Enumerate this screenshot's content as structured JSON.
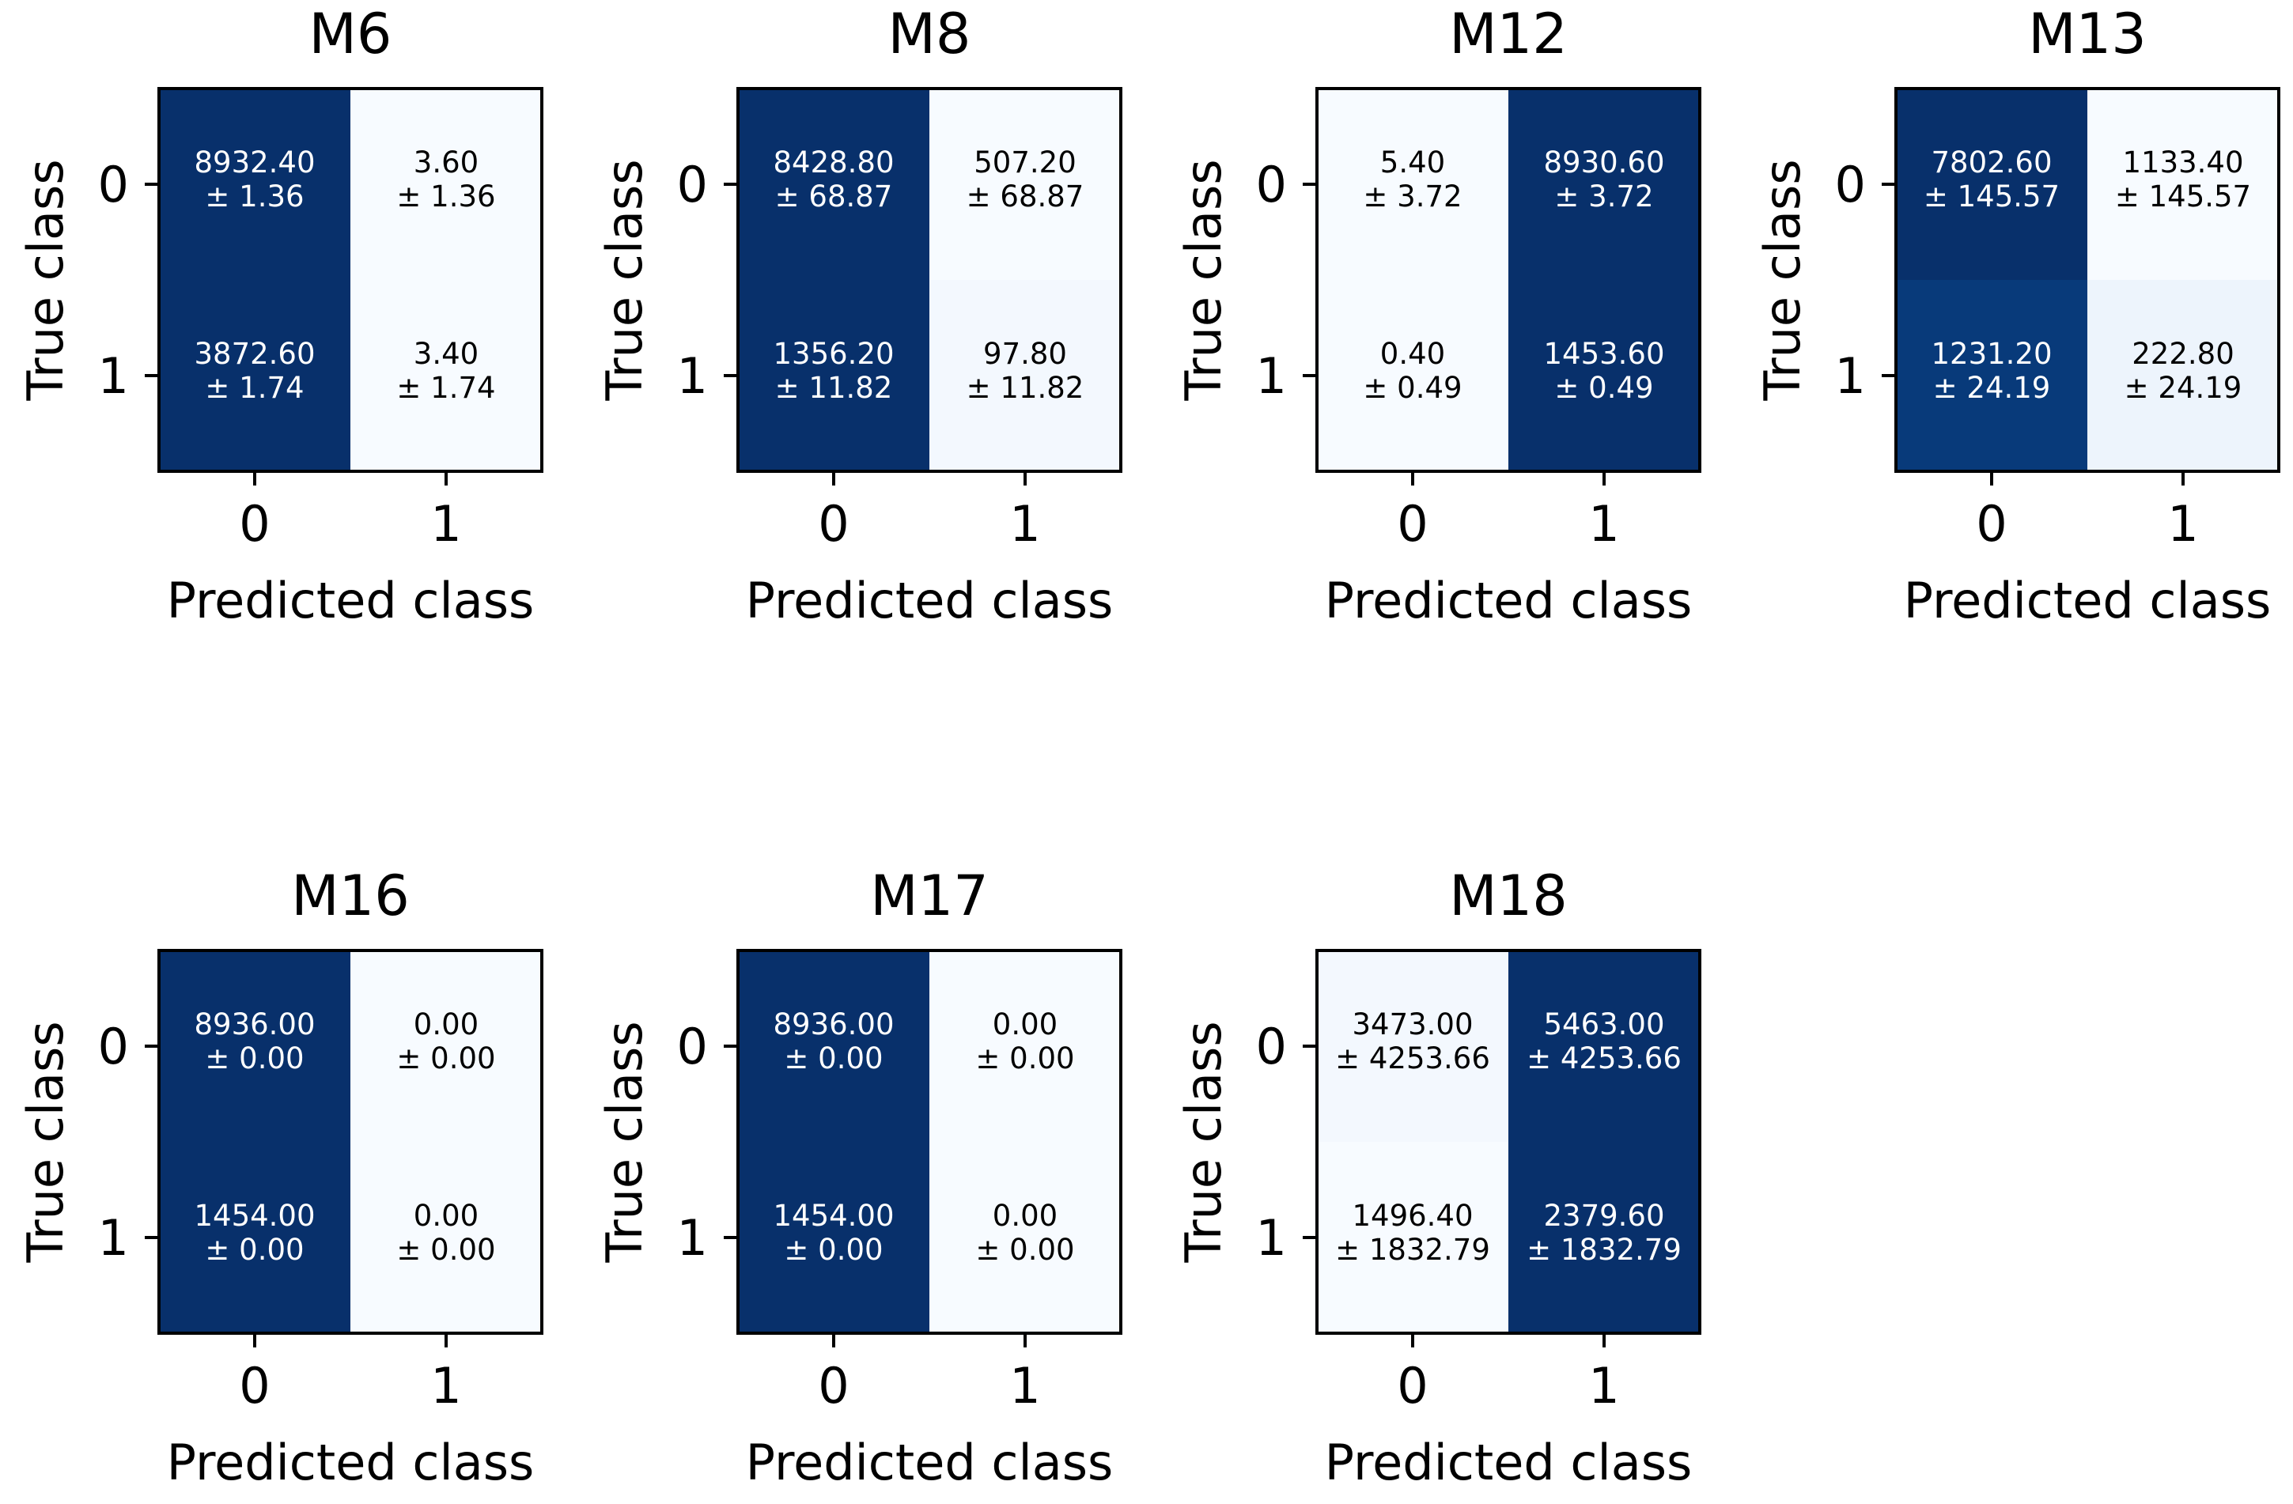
{
  "chart_data": [
    {
      "type": "heatmap",
      "title": "M6",
      "xlabel": "Predicted class",
      "ylabel": "True class",
      "x_ticks": [
        "0",
        "1"
      ],
      "y_ticks": [
        "0",
        "1"
      ],
      "cells": [
        [
          {
            "mean": "8932.40",
            "std": "± 1.36"
          },
          {
            "mean": "3.60",
            "std": "± 1.36"
          }
        ],
        [
          {
            "mean": "3872.60",
            "std": "± 1.74"
          },
          {
            "mean": "3.40",
            "std": "± 1.74"
          }
        ]
      ],
      "cell_colors": [
        [
          "#08306b",
          "#f7fbff"
        ],
        [
          "#08306b",
          "#f7fbff"
        ]
      ]
    },
    {
      "type": "heatmap",
      "title": "M8",
      "xlabel": "Predicted class",
      "ylabel": "True class",
      "x_ticks": [
        "0",
        "1"
      ],
      "y_ticks": [
        "0",
        "1"
      ],
      "cells": [
        [
          {
            "mean": "8428.80",
            "std": "± 68.87"
          },
          {
            "mean": "507.20",
            "std": "± 68.87"
          }
        ],
        [
          {
            "mean": "1356.20",
            "std": "± 11.82"
          },
          {
            "mean": "97.80",
            "std": "± 11.82"
          }
        ]
      ],
      "cell_colors": [
        [
          "#08306b",
          "#f7fbff"
        ],
        [
          "#08306b",
          "#f3f8fe"
        ]
      ]
    },
    {
      "type": "heatmap",
      "title": "M12",
      "xlabel": "Predicted class",
      "ylabel": "True class",
      "x_ticks": [
        "0",
        "1"
      ],
      "y_ticks": [
        "0",
        "1"
      ],
      "cells": [
        [
          {
            "mean": "5.40",
            "std": "± 3.72"
          },
          {
            "mean": "8930.60",
            "std": "± 3.72"
          }
        ],
        [
          {
            "mean": "0.40",
            "std": "± 0.49"
          },
          {
            "mean": "1453.60",
            "std": "± 0.49"
          }
        ]
      ],
      "cell_colors": [
        [
          "#f7fbff",
          "#08306b"
        ],
        [
          "#f7fbff",
          "#08306b"
        ]
      ]
    },
    {
      "type": "heatmap",
      "title": "M13",
      "xlabel": "Predicted class",
      "ylabel": "True class",
      "x_ticks": [
        "0",
        "1"
      ],
      "y_ticks": [
        "0",
        "1"
      ],
      "cells": [
        [
          {
            "mean": "7802.60",
            "std": "± 145.57"
          },
          {
            "mean": "1133.40",
            "std": "± 145.57"
          }
        ],
        [
          {
            "mean": "1231.20",
            "std": "± 24.19"
          },
          {
            "mean": "222.80",
            "std": "± 24.19"
          }
        ]
      ],
      "cell_colors": [
        [
          "#08306b",
          "#f7fbff"
        ],
        [
          "#083a7a",
          "#edf4fc"
        ]
      ]
    },
    {
      "type": "heatmap",
      "title": "M16",
      "xlabel": "Predicted class",
      "ylabel": "True class",
      "x_ticks": [
        "0",
        "1"
      ],
      "y_ticks": [
        "0",
        "1"
      ],
      "cells": [
        [
          {
            "mean": "8936.00",
            "std": "± 0.00"
          },
          {
            "mean": "0.00",
            "std": "± 0.00"
          }
        ],
        [
          {
            "mean": "1454.00",
            "std": "± 0.00"
          },
          {
            "mean": "0.00",
            "std": "± 0.00"
          }
        ]
      ],
      "cell_colors": [
        [
          "#08306b",
          "#f7fbff"
        ],
        [
          "#08306b",
          "#f7fbff"
        ]
      ]
    },
    {
      "type": "heatmap",
      "title": "M17",
      "xlabel": "Predicted class",
      "ylabel": "True class",
      "x_ticks": [
        "0",
        "1"
      ],
      "y_ticks": [
        "0",
        "1"
      ],
      "cells": [
        [
          {
            "mean": "8936.00",
            "std": "± 0.00"
          },
          {
            "mean": "0.00",
            "std": "± 0.00"
          }
        ],
        [
          {
            "mean": "1454.00",
            "std": "± 0.00"
          },
          {
            "mean": "0.00",
            "std": "± 0.00"
          }
        ]
      ],
      "cell_colors": [
        [
          "#08306b",
          "#f7fbff"
        ],
        [
          "#08306b",
          "#f7fbff"
        ]
      ]
    },
    {
      "type": "heatmap",
      "title": "M18",
      "xlabel": "Predicted class",
      "ylabel": "True class",
      "x_ticks": [
        "0",
        "1"
      ],
      "y_ticks": [
        "0",
        "1"
      ],
      "cells": [
        [
          {
            "mean": "3473.00",
            "std": "± 4253.66"
          },
          {
            "mean": "5463.00",
            "std": "± 4253.66"
          }
        ],
        [
          {
            "mean": "1496.40",
            "std": "± 1832.79"
          },
          {
            "mean": "2379.60",
            "std": "± 1832.79"
          }
        ]
      ],
      "cell_colors": [
        [
          "#f3f8fe",
          "#08306b"
        ],
        [
          "#f7fbff",
          "#08306b"
        ]
      ]
    }
  ]
}
